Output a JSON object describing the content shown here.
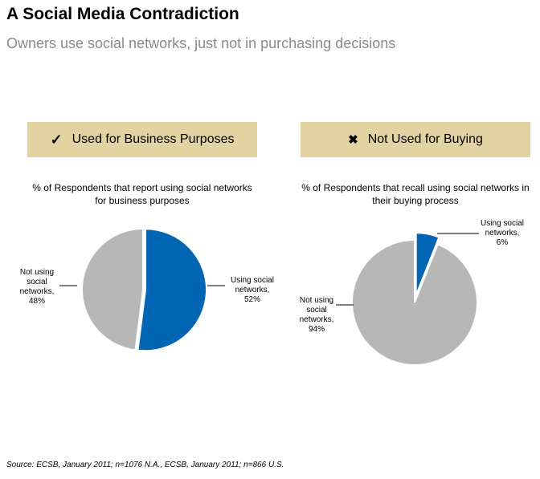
{
  "header": {
    "title": "A Social Media Contradiction",
    "subtitle": "Owners use social networks, just not in purchasing decisions"
  },
  "panels": [
    {
      "mark": "✓",
      "heading": "Used for Business Purposes"
    },
    {
      "mark": "✖",
      "heading": "Not Used for Buying"
    }
  ],
  "colors": {
    "using": "#0066b3",
    "not_using": "#b7b7b7",
    "header_bg": "#e3d3a3"
  },
  "chart_data": [
    {
      "type": "pie",
      "title": "% of Respondents that report using social networks for business purposes",
      "slices": [
        {
          "label": "Using social networks, 52%",
          "value": 52,
          "color": "#0066b3",
          "exploded": true
        },
        {
          "label": "Not using social networks, 48%",
          "value": 48,
          "color": "#b7b7b7",
          "exploded": false
        }
      ]
    },
    {
      "type": "pie",
      "title": "% of Respondents that recall using social networks in their buying process",
      "slices": [
        {
          "label": "Using social networks, 6%",
          "value": 6,
          "color": "#0066b3",
          "exploded": true
        },
        {
          "label": "Not using social networks, 94%",
          "value": 94,
          "color": "#b7b7b7",
          "exploded": false
        }
      ]
    }
  ],
  "footer": {
    "source": "Source: ECSB, January 2011; n=1076 N.A., ECSB, January 2011; n=866 U.S."
  }
}
